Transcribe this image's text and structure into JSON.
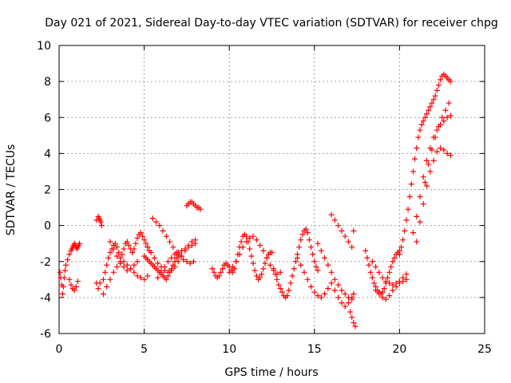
{
  "chart_data": {
    "type": "scatter",
    "title": "Day 021 of 2021, Sidereal Day-to-day VTEC variation (SDTVAR) for receiver chpg",
    "xlabel": "GPS time / hours",
    "ylabel": "SDTVAR / TECUs",
    "xlim": [
      0,
      25
    ],
    "ylim": [
      -6,
      10
    ],
    "x_ticks": [
      0,
      5,
      10,
      15,
      20,
      25
    ],
    "x_tick_labels": [
      "0",
      "5",
      "10",
      "15",
      "20",
      "25"
    ],
    "y_ticks": [
      -6,
      -4,
      -2,
      0,
      2,
      4,
      6,
      8,
      10
    ],
    "y_tick_labels": [
      "-6",
      "-4",
      "-2",
      "0",
      "2",
      "4",
      "6",
      "8",
      "10"
    ],
    "grid": true,
    "marker": "+",
    "color": "#ff0000",
    "series": [
      {
        "name": "SDTVAR",
        "x": [
          0.05,
          0.1,
          0.15,
          0.2,
          0.25,
          0.3,
          0.35,
          0.4,
          0.5,
          0.6,
          0.7,
          0.75,
          0.8,
          0.85,
          0.9,
          0.95,
          1.0,
          1.05,
          1.1,
          1.15,
          1.2,
          0.6,
          0.7,
          0.8,
          0.9,
          1.0,
          1.1,
          2.2,
          2.3,
          2.35,
          2.4,
          2.45,
          2.5,
          2.2,
          2.3,
          2.4,
          2.6,
          2.7,
          2.8,
          2.9,
          3.0,
          3.1,
          3.2,
          3.3,
          3.4,
          3.5,
          3.6,
          3.7,
          3.8,
          3.9,
          4.0,
          4.1,
          4.2,
          4.3,
          4.4,
          4.5,
          4.6,
          4.7,
          4.8,
          4.9,
          5.0,
          5.1,
          5.2,
          5.3,
          2.6,
          2.8,
          3.0,
          3.2,
          3.4,
          3.6,
          3.8,
          4.0,
          4.2,
          4.4,
          4.6,
          4.8,
          5.0,
          5.2,
          3.0,
          3.2,
          3.4,
          3.6,
          3.8,
          4.0,
          4.2,
          4.4,
          4.6,
          5.0,
          5.1,
          5.2,
          5.3,
          5.4,
          5.5,
          5.6,
          5.7,
          5.8,
          5.9,
          6.0,
          6.1,
          6.2,
          6.3,
          6.4,
          6.5,
          6.6,
          6.7,
          6.8,
          6.9,
          7.0,
          5.2,
          5.4,
          5.6,
          5.8,
          6.0,
          6.2,
          6.4,
          6.6,
          6.8,
          7.0,
          7.2,
          7.4,
          7.6,
          7.8,
          8.0,
          5.5,
          5.7,
          5.9,
          6.1,
          6.3,
          6.5,
          6.7,
          6.9,
          7.1,
          7.3,
          7.5,
          7.7,
          7.9,
          5.8,
          6.0,
          6.2,
          6.4,
          6.6,
          6.8,
          7.0,
          7.2,
          7.4,
          7.6,
          7.8,
          8.0,
          7.5,
          7.6,
          7.7,
          7.8,
          7.9,
          8.0,
          8.1,
          8.2,
          8.3,
          9.0,
          9.1,
          9.2,
          9.3,
          9.4,
          9.5,
          9.6,
          9.7,
          9.8,
          9.9,
          10.0,
          10.1,
          10.2,
          10.3,
          10.4,
          10.5,
          10.6,
          10.7,
          10.8,
          10.9,
          11.0,
          11.1,
          11.2,
          11.3,
          11.4,
          11.5,
          11.6,
          11.7,
          11.8,
          11.9,
          12.0,
          12.1,
          12.2,
          12.3,
          12.4,
          12.5,
          10.0,
          10.2,
          10.4,
          10.6,
          10.8,
          11.0,
          11.2,
          11.4,
          11.6,
          11.8,
          12.0,
          12.2,
          12.4,
          12.6,
          12.8,
          13.0,
          12.6,
          12.7,
          12.8,
          12.9,
          13.0,
          13.1,
          13.2,
          13.3,
          13.4,
          13.5,
          13.6,
          13.7,
          13.8,
          13.9,
          14.0,
          14.1,
          14.2,
          14.3,
          14.4,
          14.5,
          14.6,
          14.7,
          14.8,
          14.9,
          15.0,
          15.1,
          15.2,
          14.0,
          14.2,
          14.4,
          14.6,
          14.8,
          15.0,
          15.2,
          15.4,
          15.6,
          15.8,
          16.0,
          16.2,
          16.4,
          16.6,
          16.8,
          17.0,
          15.2,
          15.4,
          15.6,
          15.8,
          16.0,
          16.2,
          16.4,
          16.6,
          16.8,
          17.0,
          17.2,
          16.0,
          16.2,
          16.4,
          16.6,
          16.8,
          17.0,
          17.2,
          17.1,
          17.2,
          17.3,
          17.4,
          17.3,
          17.2,
          17.3,
          18.0,
          18.1,
          18.2,
          18.3,
          18.4,
          18.5,
          18.6,
          18.7,
          18.8,
          18.9,
          19.0,
          19.1,
          19.2,
          19.3,
          19.4,
          19.5,
          19.6,
          19.7,
          19.8,
          19.9,
          20.0,
          18.4,
          18.6,
          18.8,
          19.0,
          19.2,
          19.4,
          19.6,
          19.8,
          20.0,
          20.2,
          20.4,
          18.6,
          18.8,
          19.0,
          19.2,
          19.4,
          19.6,
          19.8,
          20.0,
          20.2,
          20.4,
          20.0,
          20.1,
          20.2,
          20.3,
          20.4,
          20.5,
          20.6,
          20.7,
          20.8,
          20.9,
          21.0,
          21.1,
          21.2,
          21.3,
          21.4,
          21.5,
          21.6,
          21.7,
          21.8,
          21.9,
          22.0,
          22.1,
          22.2,
          22.3,
          22.4,
          22.5,
          22.6,
          22.7,
          22.8,
          22.9,
          23.0,
          20.8,
          21.0,
          21.2,
          21.4,
          21.6,
          21.8,
          22.0,
          22.2,
          22.4,
          22.6,
          22.8,
          23.0,
          21.0,
          21.2,
          21.4,
          21.6,
          21.8,
          22.0,
          22.2,
          22.4,
          22.6,
          22.8,
          23.0,
          21.5,
          21.7,
          21.9,
          22.1,
          22.3,
          22.5,
          22.7,
          22.9
        ],
        "y": [
          -2.6,
          -2.9,
          -3.3,
          -3.8,
          -3.4,
          -2.9,
          -2.5,
          -2.2,
          -1.9,
          -1.6,
          -1.4,
          -1.3,
          -1.2,
          -1.1,
          -1.0,
          -1.1,
          -1.2,
          -1.3,
          -1.2,
          -1.1,
          -1.0,
          -3.0,
          -3.3,
          -3.5,
          -3.6,
          -3.4,
          -3.1,
          0.3,
          0.5,
          0.4,
          0.3,
          0.2,
          0.0,
          -3.2,
          -3.5,
          -3.2,
          -3.0,
          -2.6,
          -2.2,
          -1.8,
          -1.5,
          -1.3,
          -1.1,
          -1.0,
          -1.2,
          -1.5,
          -1.8,
          -1.6,
          -1.3,
          -1.0,
          -0.9,
          -1.1,
          -1.3,
          -1.5,
          -1.3,
          -1.0,
          -0.7,
          -0.5,
          -0.4,
          -0.6,
          -0.8,
          -1.0,
          -1.2,
          -1.4,
          -3.8,
          -3.4,
          -3.0,
          -2.6,
          -2.3,
          -2.1,
          -2.0,
          -2.2,
          -2.4,
          -2.6,
          -2.8,
          -2.9,
          -3.0,
          -2.8,
          -0.9,
          -1.3,
          -1.7,
          -2.0,
          -2.3,
          -2.5,
          -2.4,
          -2.2,
          -2.0,
          -1.7,
          -1.8,
          -1.9,
          -2.0,
          -2.1,
          -2.2,
          -2.3,
          -2.4,
          -2.5,
          -2.6,
          -2.7,
          -2.8,
          -2.9,
          -3.0,
          -2.8,
          -2.6,
          -2.4,
          -2.2,
          -2.0,
          -1.8,
          -1.6,
          -1.2,
          -1.5,
          -1.8,
          -2.1,
          -2.3,
          -2.5,
          -2.6,
          -2.5,
          -2.3,
          -2.0,
          -1.7,
          -1.4,
          -1.1,
          -0.9,
          -0.8,
          0.4,
          0.2,
          0.0,
          -0.3,
          -0.6,
          -0.9,
          -1.2,
          -1.5,
          -1.7,
          -1.9,
          -2.0,
          -2.1,
          -2.0,
          -2.9,
          -2.6,
          -2.3,
          -2.0,
          -1.8,
          -1.6,
          -1.5,
          -1.4,
          -1.3,
          -1.2,
          -1.1,
          -1.0,
          1.1,
          1.2,
          1.3,
          1.3,
          1.2,
          1.1,
          1.0,
          1.0,
          0.9,
          -2.4,
          -2.6,
          -2.8,
          -2.9,
          -2.8,
          -2.6,
          -2.4,
          -2.2,
          -2.1,
          -2.2,
          -2.3,
          -2.5,
          -2.6,
          -2.4,
          -2.0,
          -1.6,
          -1.2,
          -0.9,
          -0.6,
          -0.5,
          -0.6,
          -0.9,
          -1.3,
          -1.7,
          -2.1,
          -2.5,
          -2.8,
          -3.0,
          -2.9,
          -2.7,
          -2.4,
          -2.1,
          -1.8,
          -1.6,
          -1.5,
          -1.5,
          -2.6,
          -2.3,
          -2.0,
          -1.6,
          -1.2,
          -0.9,
          -0.7,
          -0.6,
          -0.8,
          -1.1,
          -1.4,
          -1.8,
          -2.2,
          -2.5,
          -2.7,
          -2.6,
          -2.4,
          -2.7,
          -3.0,
          -3.3,
          -3.5,
          -3.7,
          -3.9,
          -4.0,
          -3.9,
          -3.6,
          -3.2,
          -2.8,
          -2.4,
          -2.0,
          -1.6,
          -1.2,
          -0.8,
          -0.5,
          -0.3,
          -0.2,
          -0.4,
          -0.8,
          -1.2,
          -1.6,
          -2.0,
          -2.3,
          -2.5,
          -1.8,
          -2.2,
          -2.6,
          -3.0,
          -3.4,
          -3.7,
          -3.9,
          -4.0,
          -3.8,
          -3.5,
          -3.2,
          -3.6,
          -4.0,
          -4.3,
          -4.5,
          -4.3,
          -1.0,
          -1.4,
          -1.8,
          -2.2,
          -2.6,
          -3.0,
          -3.3,
          -3.6,
          -3.8,
          -4.0,
          -4.1,
          0.6,
          0.3,
          0.0,
          -0.3,
          -0.6,
          -0.9,
          -1.2,
          -4.8,
          -5.1,
          -5.4,
          -5.6,
          -3.8,
          -4.0,
          -0.3,
          -1.4,
          -1.8,
          -2.2,
          -2.6,
          -2.9,
          -3.2,
          -3.4,
          -3.6,
          -3.7,
          -3.8,
          -3.7,
          -3.5,
          -3.2,
          -2.9,
          -2.6,
          -2.3,
          -2.0,
          -1.8,
          -1.6,
          -1.5,
          -1.4,
          -2.0,
          -2.3,
          -2.6,
          -2.9,
          -3.1,
          -3.2,
          -3.3,
          -3.2,
          -3.1,
          -2.9,
          -2.7,
          -3.6,
          -3.8,
          -4.0,
          -4.1,
          -3.9,
          -3.6,
          -3.4,
          -3.2,
          -3.1,
          -3.0,
          -1.6,
          -1.2,
          -0.8,
          -0.3,
          0.3,
          0.9,
          1.6,
          2.3,
          3.0,
          3.7,
          4.3,
          4.9,
          5.3,
          5.6,
          5.8,
          6.0,
          6.2,
          6.4,
          6.6,
          6.8,
          7.0,
          7.2,
          7.5,
          7.8,
          8.1,
          8.3,
          8.4,
          8.3,
          8.2,
          8.1,
          8.0,
          -0.4,
          0.5,
          1.6,
          2.7,
          3.6,
          4.3,
          4.9,
          5.3,
          5.6,
          5.8,
          6.0,
          6.1,
          -0.9,
          0.2,
          1.2,
          2.2,
          3.0,
          3.6,
          4.1,
          4.3,
          4.2,
          4.0,
          3.9,
          2.4,
          3.4,
          4.2,
          4.9,
          5.5,
          6.0,
          6.4,
          6.8
        ]
      }
    ]
  }
}
